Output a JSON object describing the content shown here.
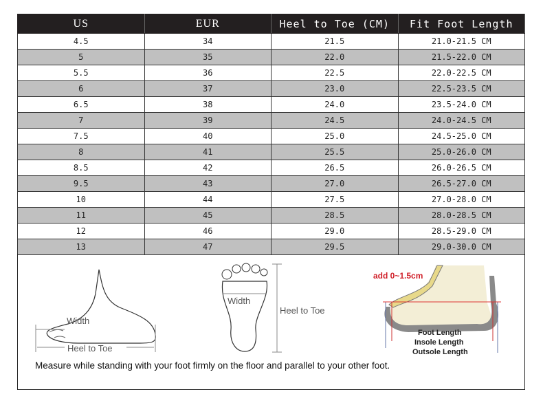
{
  "table": {
    "headers": [
      "US",
      "EUR",
      "Heel to Toe (CM)",
      "Fit Foot Length"
    ],
    "rows": [
      [
        "4.5",
        "34",
        "21.5",
        "21.0-21.5 CM"
      ],
      [
        "5",
        "35",
        "22.0",
        "21.5-22.0 CM"
      ],
      [
        "5.5",
        "36",
        "22.5",
        "22.0-22.5 CM"
      ],
      [
        "6",
        "37",
        "23.0",
        "22.5-23.5 CM"
      ],
      [
        "6.5",
        "38",
        "24.0",
        "23.5-24.0 CM"
      ],
      [
        "7",
        "39",
        "24.5",
        "24.0-24.5 CM"
      ],
      [
        "7.5",
        "40",
        "25.0",
        "24.5-25.0 CM"
      ],
      [
        "8",
        "41",
        "25.5",
        "25.0-26.0 CM"
      ],
      [
        "8.5",
        "42",
        "26.5",
        "26.0-26.5 CM"
      ],
      [
        "9.5",
        "43",
        "27.0",
        "26.5-27.0 CM"
      ],
      [
        "10",
        "44",
        "27.5",
        "27.0-28.0 CM"
      ],
      [
        "11",
        "45",
        "28.5",
        "28.0-28.5 CM"
      ],
      [
        "12",
        "46",
        "29.0",
        "28.5-29.0 CM"
      ],
      [
        "13",
        "47",
        "29.5",
        "29.0-30.0 CM"
      ]
    ]
  },
  "illustrations": {
    "side_foot": {
      "width_label": "Width",
      "length_label": "Heel to Toe"
    },
    "sole": {
      "width_label": "Width",
      "length_label": "Heel to Toe"
    },
    "shoe": {
      "add_label": "add 0~1.5cm",
      "foot_length": "Foot Length",
      "insole_length": "Insole Length",
      "outsole_length": "Outsole Length"
    },
    "caption": "Measure while standing with your foot firmly on the floor and parallel to your other foot."
  },
  "colors": {
    "header_bg": "#231f20",
    "alt_row": "#c0c0c0",
    "accent_red": "#d0202a"
  }
}
